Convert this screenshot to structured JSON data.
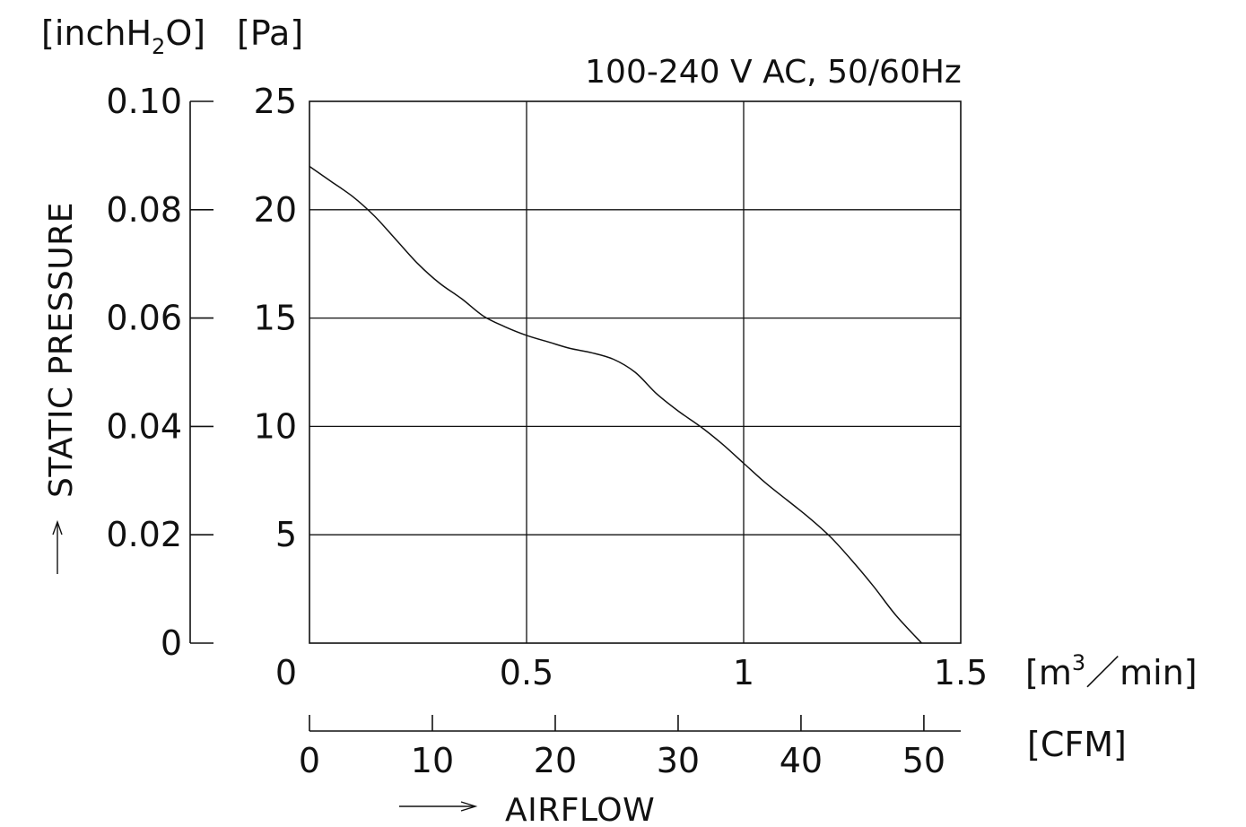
{
  "chart_data": {
    "type": "line",
    "title": "100-240 V AC, 50/60Hz",
    "xlabel": "AIRFLOW",
    "ylabel": "STATIC PRESSURE",
    "x_unit": "[m³/min]",
    "x_unit_base": "[m",
    "x_unit_sup": "3",
    "x_unit_tail": "／min]",
    "x2_unit": "[CFM]",
    "y_unit_pa": "[Pa]",
    "y_unit_inch_base": "[inchH",
    "y_unit_inch_sub": "2",
    "y_unit_inch_tail": "O]",
    "xlim": [
      0,
      1.5
    ],
    "ylim": [
      0,
      25
    ],
    "x_ticks": [
      "0",
      "0.5",
      "1",
      "1.5"
    ],
    "y_ticks": [
      "5",
      "10",
      "15",
      "20",
      "25"
    ],
    "x2_lim": [
      0,
      53
    ],
    "x2_ticks": [
      "0",
      "10",
      "20",
      "30",
      "40",
      "50"
    ],
    "y2_lim": [
      0,
      0.1
    ],
    "y2_ticks": [
      "0",
      "0.02",
      "0.04",
      "0.06",
      "0.08",
      "0.10"
    ],
    "grid": true,
    "series": [
      {
        "x": [
          0,
          0.05,
          0.1,
          0.15,
          0.2,
          0.25,
          0.3,
          0.35,
          0.4,
          0.45,
          0.5,
          0.55,
          0.6,
          0.65,
          0.7,
          0.75,
          0.8,
          0.85,
          0.9,
          0.95,
          1.0,
          1.05,
          1.1,
          1.15,
          1.2,
          1.25,
          1.3,
          1.35,
          1.41
        ],
        "values": [
          22.0,
          21.3,
          20.6,
          19.7,
          18.6,
          17.5,
          16.6,
          15.9,
          15.1,
          14.6,
          14.2,
          13.9,
          13.6,
          13.4,
          13.1,
          12.5,
          11.5,
          10.7,
          10.0,
          9.2,
          8.3,
          7.4,
          6.6,
          5.8,
          4.9,
          3.8,
          2.6,
          1.3,
          0.0
        ]
      }
    ]
  }
}
